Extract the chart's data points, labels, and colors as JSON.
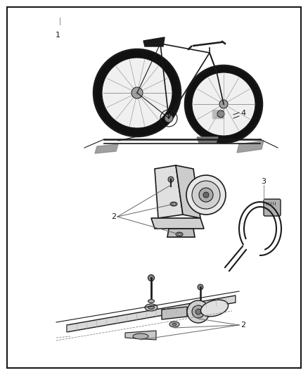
{
  "background_color": "#ffffff",
  "border_color": "#1a1a1a",
  "border_linewidth": 1.5,
  "label_fontsize": 8,
  "label_color": "#1a1a1a",
  "line_color": "#222222",
  "gray_light": "#cccccc",
  "gray_mid": "#888888",
  "gray_dark": "#444444"
}
